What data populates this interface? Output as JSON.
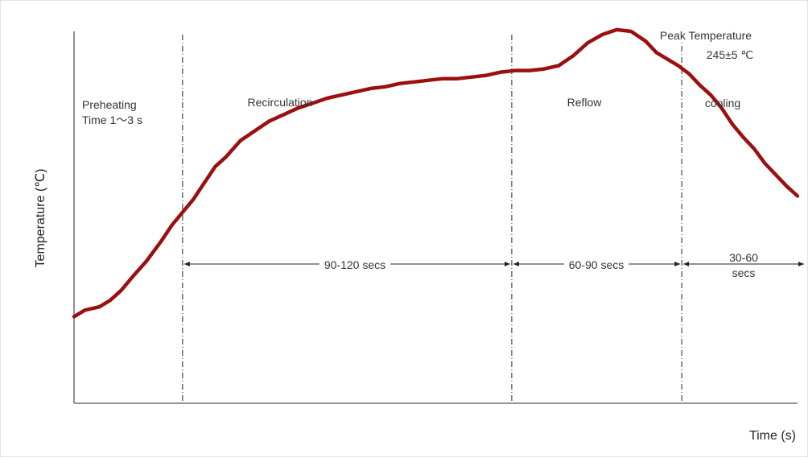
{
  "chart_data": {
    "type": "line",
    "title": "",
    "xlabel": "Time (s)",
    "ylabel": "Temperature (℃)",
    "xlim": [
      0,
      100
    ],
    "ylim": [
      0,
      100
    ],
    "grid": false,
    "series": [
      {
        "color": "#9b0f0f",
        "x": [
          0,
          1.5,
          3.5,
          5,
          6.5,
          8,
          10,
          12,
          13.5,
          15,
          16.5,
          18,
          19.5,
          21,
          23,
          25,
          27,
          29,
          31,
          33,
          35,
          37,
          39,
          41,
          43,
          45,
          47,
          49,
          51,
          53,
          55,
          57,
          59,
          61,
          63,
          65,
          67,
          69,
          71,
          73,
          75,
          77,
          79,
          80.5,
          82,
          83.5,
          85,
          86.5,
          88,
          89.5,
          91,
          92.5,
          94,
          95.5,
          97,
          98.5,
          100
        ],
        "y": [
          13,
          15,
          16,
          18,
          21,
          25,
          30,
          36,
          41,
          45,
          49,
          54,
          59,
          62,
          67,
          70,
          73,
          75,
          77,
          78.5,
          80,
          81,
          82,
          83,
          83.5,
          84.5,
          85,
          85.5,
          86,
          86,
          86.5,
          87,
          88,
          88.5,
          88.5,
          89,
          90,
          93,
          97,
          99.5,
          101,
          100.5,
          97.5,
          94,
          92,
          90,
          87.5,
          84,
          81,
          77,
          72,
          68,
          64.5,
          60,
          56.5,
          53,
          50
        ]
      }
    ],
    "phase_boundaries_x": [
      15,
      60.5,
      84
    ],
    "phases": [
      {
        "name": "Preheating",
        "detail": "Time 1～3 s"
      },
      {
        "name": "Recirculation",
        "duration": "90-120 secs"
      },
      {
        "name": "Reflow",
        "duration": "60-90 secs"
      },
      {
        "name": "cooling",
        "duration_line1": "30-60",
        "duration_line2": "secs"
      }
    ],
    "annotations": {
      "peak_label": "Peak Temperature",
      "peak_value": "245±5 ℃"
    }
  }
}
